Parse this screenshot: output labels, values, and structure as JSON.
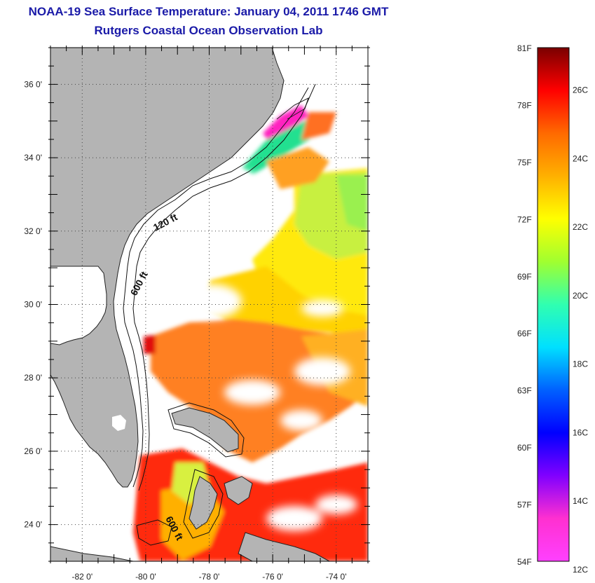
{
  "title": "NOAA-19 Sea Surface Temperature:  January 04, 2011 1746 GMT",
  "subtitle": "Rutgers Coastal Ocean Observation Lab",
  "map": {
    "lat_range": [
      23,
      37
    ],
    "lon_range": [
      -83,
      -73
    ],
    "lat_ticks": [
      "24 0'",
      "26 0'",
      "28 0'",
      "30 0'",
      "32 0'",
      "34 0'",
      "36 0'"
    ],
    "lon_ticks": [
      "-82 0'",
      "-80 0'",
      "-78 0'",
      "-76 0'",
      "-74 0'"
    ],
    "grid": true,
    "contour_labels": [
      "120 ft",
      "600 ft",
      "600 ft"
    ],
    "land_color": "#b4b4b4",
    "ocean_color": "#ffffff"
  },
  "colorbar": {
    "fahrenheit_labels": [
      "81F",
      "78F",
      "75F",
      "72F",
      "69F",
      "66F",
      "63F",
      "60F",
      "57F",
      "54F"
    ],
    "celsius_labels": [
      "26C",
      "24C",
      "22C",
      "20C",
      "18C",
      "16C",
      "14C",
      "12C"
    ],
    "colors_top_to_bottom": [
      "#7a0000",
      "#ff0000",
      "#ff6a00",
      "#ffb000",
      "#ffff00",
      "#a0ff30",
      "#30ffb0",
      "#00e0ff",
      "#0060ff",
      "#0000ff",
      "#8000ff",
      "#ff30d0",
      "#ff40ff"
    ]
  }
}
